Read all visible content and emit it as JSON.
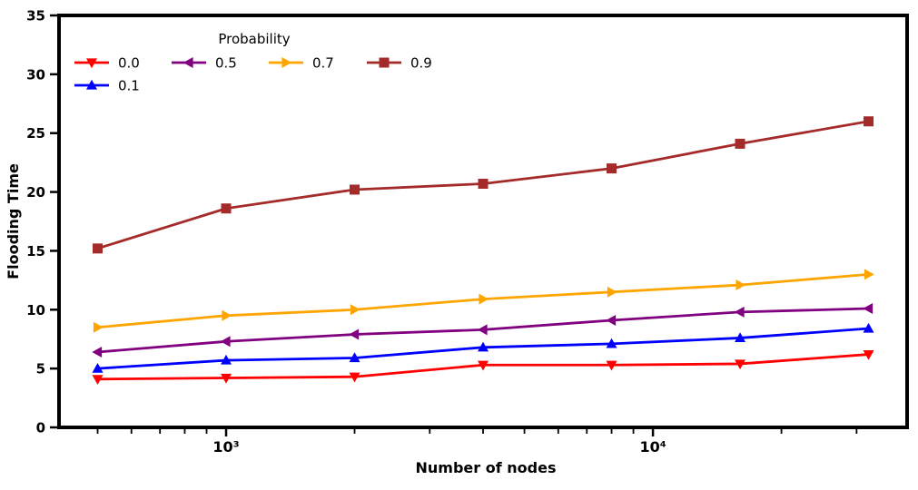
{
  "figure": {
    "background": "#ffffff",
    "axis_color": "#000000"
  },
  "chart_data": {
    "type": "line",
    "title": "",
    "xlabel": "Number of nodes",
    "ylabel": "Flooding Time",
    "x_scale": "log",
    "grid": false,
    "x": [
      500,
      1000,
      2000,
      4000,
      8000,
      16000,
      32000
    ],
    "xlim": [
      406,
      39400
    ],
    "ylim": [
      0,
      35
    ],
    "y_ticks": [
      0,
      5,
      10,
      15,
      20,
      25,
      30,
      35
    ],
    "x_major_ticks": [
      1000,
      10000
    ],
    "x_major_tick_labels": [
      "10³",
      "10⁴"
    ],
    "x_minor_ticks": [
      500,
      600,
      700,
      800,
      900,
      2000,
      3000,
      4000,
      5000,
      6000,
      7000,
      8000,
      9000,
      20000,
      30000
    ],
    "legend": {
      "title": "Probability",
      "position": "upper-left",
      "columns": 4,
      "frame": false
    },
    "series": [
      {
        "name": "0.0",
        "color": "#ff0000",
        "marker": "triangle-down",
        "values": [
          4.1,
          4.2,
          4.3,
          5.3,
          5.3,
          5.4,
          6.2
        ]
      },
      {
        "name": "0.1",
        "color": "#0000ff",
        "marker": "triangle-up",
        "values": [
          5.0,
          5.7,
          5.9,
          6.8,
          7.1,
          7.6,
          8.4
        ]
      },
      {
        "name": "0.5",
        "color": "#800080",
        "marker": "triangle-left",
        "values": [
          6.4,
          7.3,
          7.9,
          8.3,
          9.1,
          9.8,
          10.1
        ]
      },
      {
        "name": "0.7",
        "color": "#ffa500",
        "marker": "triangle-right",
        "values": [
          8.5,
          9.5,
          10.0,
          10.9,
          11.5,
          12.1,
          13.0
        ]
      },
      {
        "name": "0.9",
        "color": "#a52a2a",
        "marker": "square",
        "values": [
          15.2,
          18.6,
          20.2,
          20.7,
          22.0,
          24.1,
          26.0
        ]
      }
    ]
  }
}
